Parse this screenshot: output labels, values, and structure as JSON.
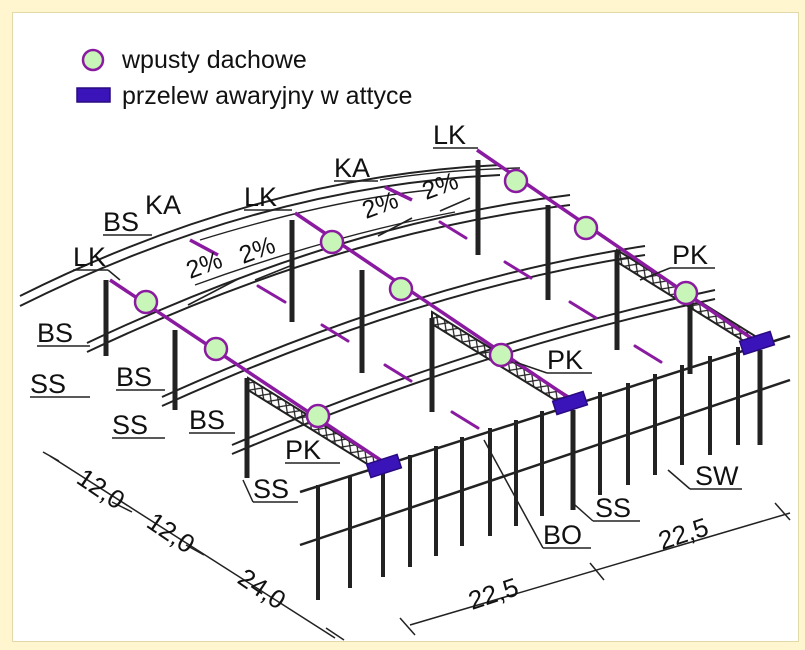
{
  "colors": {
    "background": "#fff5cf",
    "drain_fill": "#c8f5b8",
    "drain_stroke": "#8a1aa0",
    "gutter_line": "#8a1aa0",
    "overflow_fill": "#3a14b8",
    "structure": "#222222"
  },
  "legend": {
    "drain_label": "wpusty dachowe",
    "overflow_label": "przelew awaryjny w attyce"
  },
  "labels": {
    "lk": "LK",
    "ka": "KA",
    "bs": "BS",
    "ss": "SS",
    "pk": "PK",
    "bo": "BO",
    "sw": "SW"
  },
  "slope": "2%",
  "dimensions": {
    "d_12a": "12,0",
    "d_12b": "12,0",
    "d_24": "24,0",
    "d_225a": "22,5",
    "d_225b": "22,5"
  }
}
